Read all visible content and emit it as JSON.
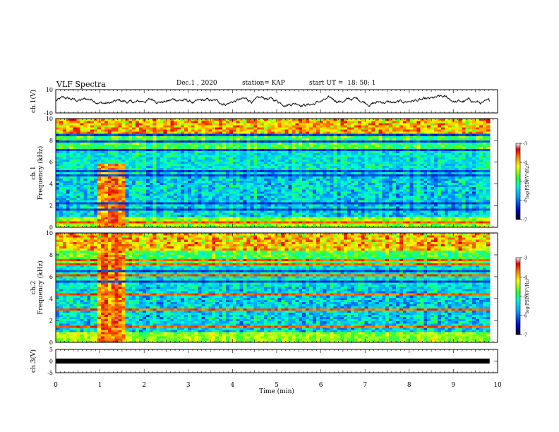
{
  "header": {
    "title": "VLF Spectra",
    "date": "Dec.1 , 2020",
    "station": "station= KAP",
    "start": "start UT =  18: 50: 1"
  },
  "chart_data": [
    {
      "type": "line",
      "ylabel": "ch.1(V)",
      "ylim": [
        -10,
        10
      ],
      "yticks": [
        "10",
        "-10"
      ],
      "color": "#000000"
    },
    {
      "type": "heatmap",
      "ylabel_channel": "ch.1",
      "ylabel": "Frequency (kHz)",
      "ylim": [
        0,
        10
      ],
      "yticks": [
        "0",
        "2",
        "4",
        "6",
        "8",
        "10"
      ],
      "colorbar": {
        "label": "log(PSD)(V²/Hz)",
        "ticks": [
          "-3",
          "-4",
          "-5",
          "-6",
          "-7"
        ],
        "range": [
          -7,
          -3
        ]
      }
    },
    {
      "type": "heatmap",
      "ylabel_channel": "ch.2",
      "ylabel": "Frequency (kHz)",
      "ylim": [
        0,
        10
      ],
      "yticks": [
        "0",
        "2",
        "4",
        "6",
        "8",
        "10"
      ],
      "colorbar": {
        "label": "log(PSD)(V²/Hz)",
        "ticks": [
          "-3",
          "-4",
          "-5",
          "-6",
          "-7"
        ],
        "range": [
          -7,
          -3
        ]
      }
    },
    {
      "type": "line",
      "ylabel": "ch.3(V)",
      "ylim": [
        -5,
        5
      ],
      "yticks": [
        "5",
        "0",
        "-5"
      ],
      "value": 0
    }
  ],
  "xaxis": {
    "label": "Time (min)",
    "range": [
      0,
      10
    ],
    "ticks": [
      "0",
      "1",
      "2",
      "3",
      "4",
      "5",
      "6",
      "7",
      "8",
      "9",
      "10"
    ],
    "data_end": 9.82
  }
}
